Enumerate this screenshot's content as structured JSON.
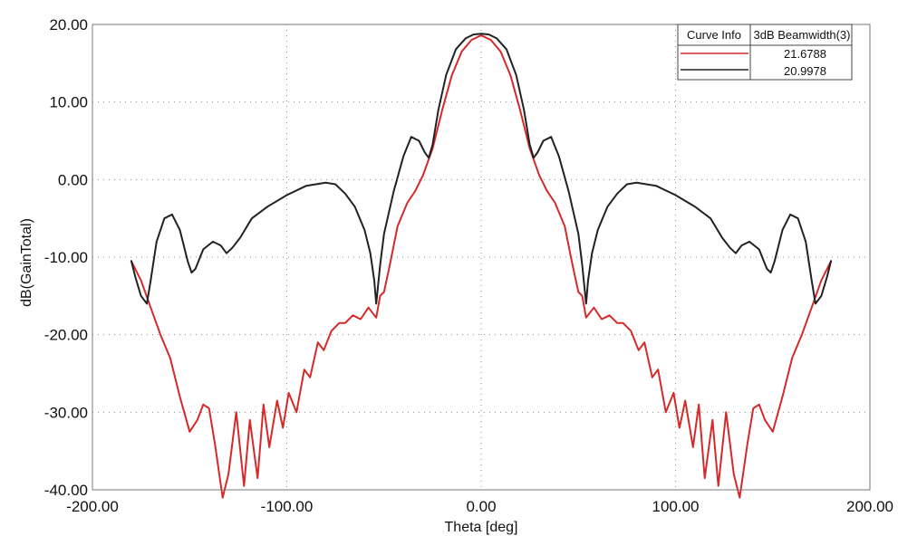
{
  "chart_data": {
    "type": "line",
    "xlabel": "Theta [deg]",
    "ylabel": "dB(GainTotal)",
    "xlim": [
      -200,
      200
    ],
    "ylim": [
      -40,
      20
    ],
    "x_ticks": [
      "-200.00",
      "-100.00",
      "0.00",
      "100.00",
      "200.00"
    ],
    "y_ticks": [
      "20.00",
      "10.00",
      "0.00",
      "-10.00",
      "-20.00",
      "-30.00",
      "-40.00"
    ],
    "grid": true,
    "legend_position": "top-right",
    "legend": {
      "header": [
        "Curve Info",
        "3dB Beamwidth(3)"
      ],
      "rows": [
        {
          "color": "#d42a2a",
          "value": "21.6788"
        },
        {
          "color": "#222222",
          "value": "20.9978"
        }
      ]
    },
    "series": [
      {
        "color": "#d42a2a",
        "x": [
          -180,
          -175,
          -170,
          -165,
          -160,
          -155,
          -150,
          -146,
          -143,
          -140,
          -137,
          -133,
          -130,
          -126,
          -122,
          -119,
          -115,
          -112,
          -109,
          -105,
          -102,
          -99,
          -95,
          -91,
          -88,
          -84,
          -81,
          -77,
          -73,
          -70,
          -66,
          -62,
          -58,
          -54,
          -52,
          -50,
          -47,
          -43,
          -38,
          -34,
          -30,
          -25,
          -20,
          -15,
          -10,
          -5,
          0,
          5,
          10,
          15,
          20,
          25,
          30,
          34,
          38,
          43,
          47,
          50,
          52,
          54,
          58,
          62,
          66,
          70,
          73,
          77,
          81,
          84,
          88,
          91,
          95,
          99,
          102,
          105,
          109,
          112,
          115,
          119,
          122,
          126,
          130,
          133,
          137,
          140,
          143,
          146,
          150,
          155,
          160,
          165,
          170,
          175,
          180
        ],
        "y": [
          -10.5,
          -13.0,
          -16.5,
          -20.0,
          -23.0,
          -28.0,
          -32.5,
          -31.0,
          -29.0,
          -29.5,
          -34.0,
          -41.0,
          -38.0,
          -30.0,
          -39.5,
          -31.0,
          -38.5,
          -29.0,
          -34.5,
          -28.5,
          -32.0,
          -27.5,
          -30.0,
          -24.5,
          -25.5,
          -21.0,
          -22.0,
          -19.5,
          -18.5,
          -18.5,
          -17.5,
          -18.0,
          -16.5,
          -17.8,
          -15.0,
          -14.5,
          -11.0,
          -6.0,
          -3.0,
          -1.5,
          0.5,
          4.0,
          9.0,
          13.5,
          16.5,
          18.0,
          18.6,
          18.0,
          16.5,
          13.5,
          9.0,
          4.0,
          0.5,
          -1.5,
          -3.0,
          -6.0,
          -11.0,
          -14.5,
          -15.0,
          -17.8,
          -16.5,
          -18.0,
          -17.5,
          -18.5,
          -18.5,
          -19.5,
          -22.0,
          -21.0,
          -25.5,
          -24.5,
          -30.0,
          -27.5,
          -32.0,
          -28.5,
          -34.5,
          -29.0,
          -38.5,
          -31.0,
          -39.5,
          -30.0,
          -38.0,
          -41.0,
          -34.0,
          -29.5,
          -29.0,
          -31.0,
          -32.5,
          -28.0,
          -23.0,
          -20.0,
          -16.5,
          -13.0,
          -10.5
        ]
      },
      {
        "color": "#222222",
        "x": [
          -180,
          -178,
          -175,
          -172,
          -170,
          -167,
          -163,
          -159,
          -155,
          -151,
          -149,
          -147,
          -143,
          -138,
          -134,
          -131,
          -128,
          -124,
          -118,
          -110,
          -100,
          -90,
          -80,
          -75,
          -70,
          -65,
          -60,
          -57,
          -55,
          -54,
          -52,
          -50,
          -45,
          -40,
          -36,
          -32,
          -29,
          -27,
          -25,
          -22,
          -18,
          -13,
          -8,
          -4,
          0,
          4,
          8,
          13,
          18,
          22,
          25,
          27,
          29,
          32,
          36,
          40,
          45,
          50,
          52,
          54,
          55,
          57,
          60,
          65,
          70,
          75,
          80,
          90,
          100,
          110,
          118,
          124,
          128,
          131,
          134,
          138,
          143,
          147,
          149,
          151,
          155,
          159,
          163,
          167,
          170,
          172,
          175,
          178,
          180
        ],
        "y": [
          -10.5,
          -12.5,
          -15.0,
          -16.0,
          -13.0,
          -8.0,
          -5.0,
          -4.5,
          -6.5,
          -10.5,
          -12.0,
          -11.5,
          -9.0,
          -8.0,
          -8.5,
          -9.5,
          -8.8,
          -7.5,
          -5.0,
          -3.5,
          -2.0,
          -0.8,
          -0.4,
          -0.6,
          -1.8,
          -3.5,
          -6.5,
          -9.5,
          -13.0,
          -16.0,
          -11.0,
          -7.0,
          -1.5,
          3.0,
          5.5,
          5.0,
          3.5,
          2.8,
          4.5,
          9.0,
          13.5,
          16.8,
          18.2,
          18.7,
          18.8,
          18.7,
          18.2,
          16.8,
          13.5,
          9.0,
          4.5,
          2.8,
          3.5,
          5.0,
          5.5,
          3.0,
          -1.5,
          -7.0,
          -11.0,
          -16.0,
          -13.0,
          -9.5,
          -6.5,
          -3.5,
          -1.8,
          -0.6,
          -0.4,
          -0.8,
          -2.0,
          -3.5,
          -5.0,
          -7.5,
          -8.8,
          -9.5,
          -8.5,
          -8.0,
          -9.0,
          -11.5,
          -12.0,
          -10.5,
          -6.5,
          -4.5,
          -5.0,
          -8.0,
          -13.0,
          -16.0,
          -15.0,
          -12.5,
          -10.5
        ]
      }
    ]
  }
}
